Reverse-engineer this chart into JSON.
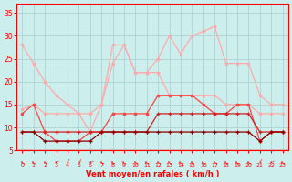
{
  "x": [
    0,
    1,
    2,
    3,
    4,
    5,
    6,
    7,
    8,
    9,
    10,
    11,
    12,
    13,
    14,
    15,
    16,
    17,
    18,
    19,
    20,
    21,
    22,
    23
  ],
  "line_gust_light": [
    28,
    24,
    20,
    17,
    15,
    13,
    13,
    15,
    24,
    28,
    22,
    22,
    25,
    30,
    26,
    30,
    31,
    32,
    24,
    24,
    24,
    17,
    15,
    15
  ],
  "line_gust_medium": [
    14,
    15,
    13,
    13,
    13,
    13,
    9,
    15,
    28,
    28,
    22,
    22,
    22,
    17,
    17,
    17,
    17,
    17,
    15,
    15,
    15,
    13,
    13,
    13
  ],
  "line_wind_med": [
    13,
    15,
    9,
    7,
    7,
    7,
    9,
    9,
    13,
    13,
    13,
    13,
    17,
    17,
    17,
    17,
    15,
    13,
    13,
    15,
    15,
    7,
    9,
    9
  ],
  "line_wind_low": [
    9,
    9,
    9,
    9,
    9,
    9,
    9,
    9,
    9,
    9,
    9,
    9,
    13,
    13,
    13,
    13,
    13,
    13,
    13,
    13,
    13,
    9,
    9,
    9
  ],
  "line_base": [
    9,
    9,
    7,
    7,
    7,
    7,
    7,
    9,
    9,
    9,
    9,
    9,
    9,
    9,
    9,
    9,
    9,
    9,
    9,
    9,
    9,
    7,
    9,
    9
  ],
  "bg_color": "#cceeed",
  "grid_color": "#aacccc",
  "axis_color": "#ff0000",
  "line1_color": "#ffaaaa",
  "line2_color": "#ffaaaa",
  "line3_color": "#ff4444",
  "line4_color": "#cc2222",
  "line5_color": "#880000",
  "xlabel": "Vent moyen/en rafales ( km/h )",
  "ylim": [
    5,
    37
  ],
  "xlim": [
    -0.5,
    23.5
  ],
  "yticks": [
    5,
    10,
    15,
    20,
    25,
    30,
    35
  ],
  "xticks": [
    0,
    1,
    2,
    3,
    4,
    5,
    6,
    7,
    8,
    9,
    10,
    11,
    12,
    13,
    14,
    15,
    16,
    17,
    18,
    19,
    20,
    21,
    22,
    23
  ],
  "arrow_chars": [
    "←",
    "←",
    "←",
    "↙",
    "↓",
    "↓",
    "↙",
    "←",
    "←",
    "←",
    "←",
    "←",
    "←",
    "←",
    "←",
    "←",
    "←",
    "←",
    "←",
    "←",
    "←",
    "↓",
    "↙",
    "←"
  ]
}
